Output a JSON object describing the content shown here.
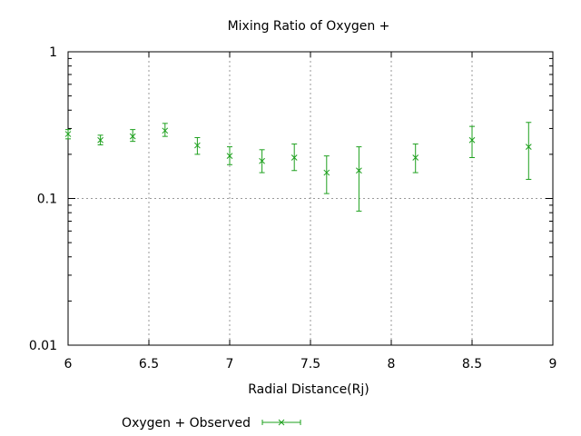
{
  "chart_data": {
    "type": "scatter",
    "title": "Mixing Ratio of Oxygen +",
    "xlabel": "Radial Distance(Rj)",
    "ylabel": "",
    "xlim": [
      6,
      9
    ],
    "ylim": [
      0.01,
      1
    ],
    "yscale": "log",
    "x_ticks": [
      "6",
      "6.5",
      "7",
      "7.5",
      "8",
      "8.5",
      "9"
    ],
    "y_ticks": [
      "0.01",
      "0.1",
      "1"
    ],
    "grid": true,
    "legend_position": "bottom",
    "series": [
      {
        "name": "Oxygen + Observed",
        "color": "#1ea01e",
        "marker": "x",
        "error_bars": true,
        "points": [
          {
            "x": 6.0,
            "y": 0.275,
            "low": 0.255,
            "high": 0.295
          },
          {
            "x": 6.2,
            "y": 0.25,
            "low": 0.232,
            "high": 0.27
          },
          {
            "x": 6.4,
            "y": 0.265,
            "low": 0.245,
            "high": 0.295
          },
          {
            "x": 6.6,
            "y": 0.29,
            "low": 0.265,
            "high": 0.325
          },
          {
            "x": 6.8,
            "y": 0.23,
            "low": 0.2,
            "high": 0.26
          },
          {
            "x": 7.0,
            "y": 0.195,
            "low": 0.17,
            "high": 0.225
          },
          {
            "x": 7.2,
            "y": 0.18,
            "low": 0.15,
            "high": 0.215
          },
          {
            "x": 7.4,
            "y": 0.19,
            "low": 0.155,
            "high": 0.235
          },
          {
            "x": 7.6,
            "y": 0.15,
            "low": 0.108,
            "high": 0.195
          },
          {
            "x": 7.8,
            "y": 0.155,
            "low": 0.082,
            "high": 0.225
          },
          {
            "x": 8.15,
            "y": 0.19,
            "low": 0.15,
            "high": 0.235
          },
          {
            "x": 8.5,
            "y": 0.25,
            "low": 0.19,
            "high": 0.31
          },
          {
            "x": 8.85,
            "y": 0.225,
            "low": 0.135,
            "high": 0.33
          }
        ]
      }
    ]
  }
}
